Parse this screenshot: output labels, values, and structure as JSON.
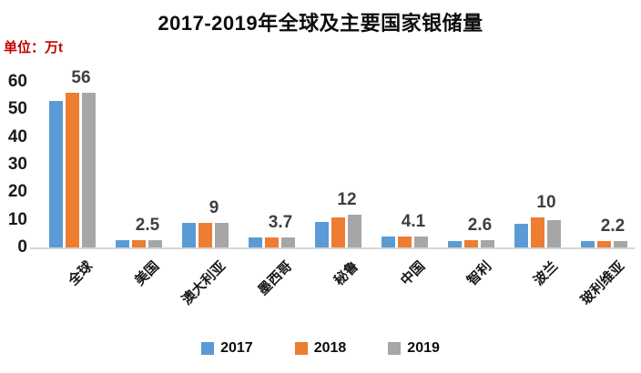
{
  "title": "2017-2019年全球及主要国家银储量",
  "unit_label": "单位：万t",
  "colors": {
    "series_2017": "#5B9BD5",
    "series_2018": "#ED7D31",
    "series_2019": "#A6A6A6",
    "unit_label_red": "#C00000",
    "data_label_gray": "#3F3F3F",
    "axis_line": "#D6D6D6",
    "text": "#1A1A1A",
    "background": "#FFFFFF"
  },
  "chart_data": {
    "type": "bar",
    "title": "2017-2019年全球及主要国家银储量",
    "unit": "万t",
    "categories": [
      "全球",
      "美国",
      "澳大利亚",
      "墨西哥",
      "秘鲁",
      "中国",
      "智利",
      "波兰",
      "玻利维亚"
    ],
    "series": [
      {
        "name": "2017",
        "color": "#5B9BD5",
        "values": [
          53,
          2.5,
          9,
          3.7,
          9.3,
          3.9,
          2.4,
          8.5,
          2.2
        ]
      },
      {
        "name": "2018",
        "color": "#ED7D31",
        "values": [
          56,
          2.5,
          9,
          3.7,
          11,
          4.1,
          2.6,
          11,
          2.2
        ]
      },
      {
        "name": "2019",
        "color": "#A6A6A6",
        "values": [
          56,
          2.5,
          9,
          3.7,
          12,
          4.1,
          2.6,
          10,
          2.2
        ]
      }
    ],
    "group_labels": [
      "56",
      "2.5",
      "9",
      "3.7",
      "12",
      "4.1",
      "2.6",
      "10",
      "2.2"
    ],
    "yticks": [
      0,
      10,
      20,
      30,
      40,
      50,
      60
    ],
    "ylim": [
      0,
      60
    ],
    "grid": false,
    "legend_position": "bottom",
    "legend_entries": [
      "2017",
      "2018",
      "2019"
    ]
  }
}
